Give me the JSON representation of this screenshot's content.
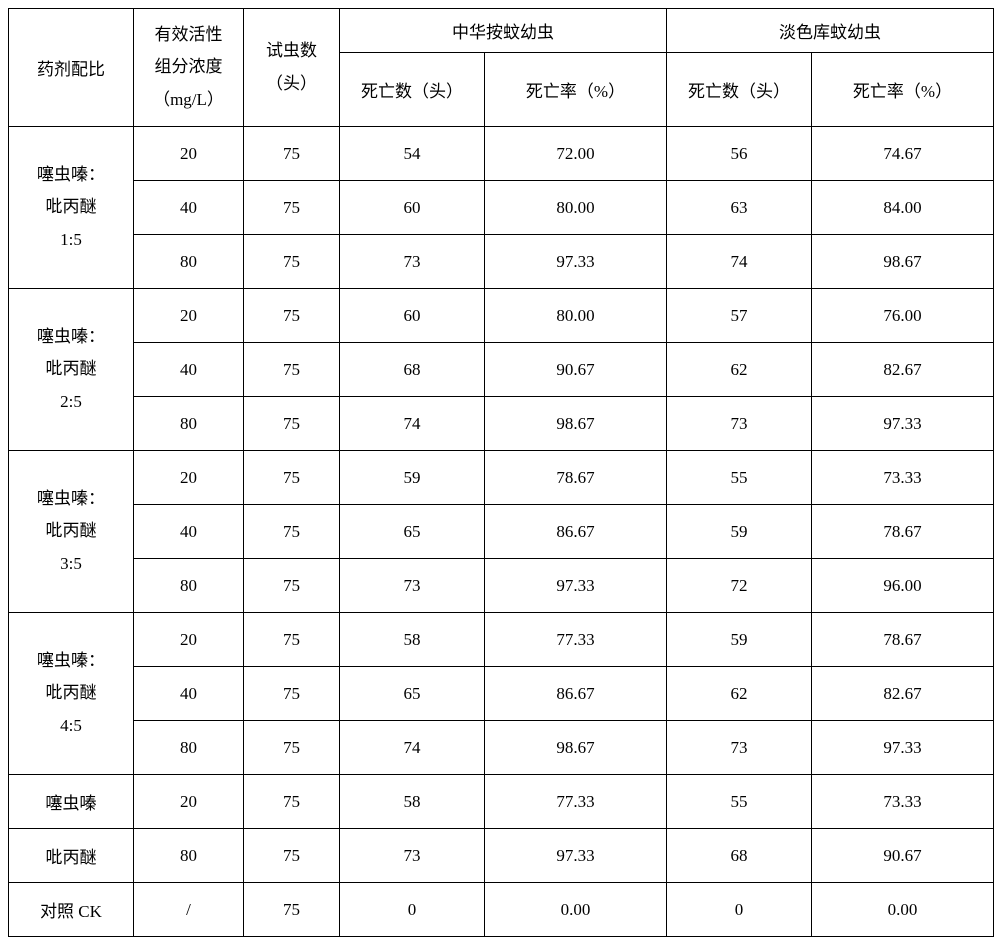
{
  "headers": {
    "c0": "药剂配比",
    "c1_l1": "有效活性",
    "c1_l2": "组分浓度",
    "c1_l3": "（mg/L）",
    "c2_l1": "试虫数",
    "c2_l2": "（头）",
    "g1": "中华按蚊幼虫",
    "g2": "淡色库蚊幼虫",
    "c3": "死亡数（头）",
    "c4": "死亡率（%）",
    "c5": "死亡数（头）",
    "c6": "死亡率（%）"
  },
  "groups": [
    {
      "label_l1": "噻虫嗪：",
      "label_l2": "吡丙醚",
      "label_l3": "1:5",
      "rows": [
        {
          "conc": "20",
          "n": "75",
          "d1": "54",
          "r1": "72.00",
          "d2": "56",
          "r2": "74.67"
        },
        {
          "conc": "40",
          "n": "75",
          "d1": "60",
          "r1": "80.00",
          "d2": "63",
          "r2": "84.00"
        },
        {
          "conc": "80",
          "n": "75",
          "d1": "73",
          "r1": "97.33",
          "d2": "74",
          "r2": "98.67"
        }
      ]
    },
    {
      "label_l1": "噻虫嗪：",
      "label_l2": "吡丙醚",
      "label_l3": "2:5",
      "rows": [
        {
          "conc": "20",
          "n": "75",
          "d1": "60",
          "r1": "80.00",
          "d2": "57",
          "r2": "76.00"
        },
        {
          "conc": "40",
          "n": "75",
          "d1": "68",
          "r1": "90.67",
          "d2": "62",
          "r2": "82.67"
        },
        {
          "conc": "80",
          "n": "75",
          "d1": "74",
          "r1": "98.67",
          "d2": "73",
          "r2": "97.33"
        }
      ]
    },
    {
      "label_l1": "噻虫嗪：",
      "label_l2": "吡丙醚",
      "label_l3": "3:5",
      "rows": [
        {
          "conc": "20",
          "n": "75",
          "d1": "59",
          "r1": "78.67",
          "d2": "55",
          "r2": "73.33"
        },
        {
          "conc": "40",
          "n": "75",
          "d1": "65",
          "r1": "86.67",
          "d2": "59",
          "r2": "78.67"
        },
        {
          "conc": "80",
          "n": "75",
          "d1": "73",
          "r1": "97.33",
          "d2": "72",
          "r2": "96.00"
        }
      ]
    },
    {
      "label_l1": "噻虫嗪：",
      "label_l2": "吡丙醚",
      "label_l3": "4:5",
      "rows": [
        {
          "conc": "20",
          "n": "75",
          "d1": "58",
          "r1": "77.33",
          "d2": "59",
          "r2": "78.67"
        },
        {
          "conc": "40",
          "n": "75",
          "d1": "65",
          "r1": "86.67",
          "d2": "62",
          "r2": "82.67"
        },
        {
          "conc": "80",
          "n": "75",
          "d1": "74",
          "r1": "98.67",
          "d2": "73",
          "r2": "97.33"
        }
      ]
    }
  ],
  "singles": [
    {
      "label": "噻虫嗪",
      "conc": "20",
      "n": "75",
      "d1": "58",
      "r1": "77.33",
      "d2": "55",
      "r2": "73.33"
    },
    {
      "label": "吡丙醚",
      "conc": "80",
      "n": "75",
      "d1": "73",
      "r1": "97.33",
      "d2": "68",
      "r2": "90.67"
    },
    {
      "label": "对照 CK",
      "conc": "/",
      "n": "75",
      "d1": "0",
      "r1": "0.00",
      "d2": "0",
      "r2": "0.00"
    }
  ]
}
